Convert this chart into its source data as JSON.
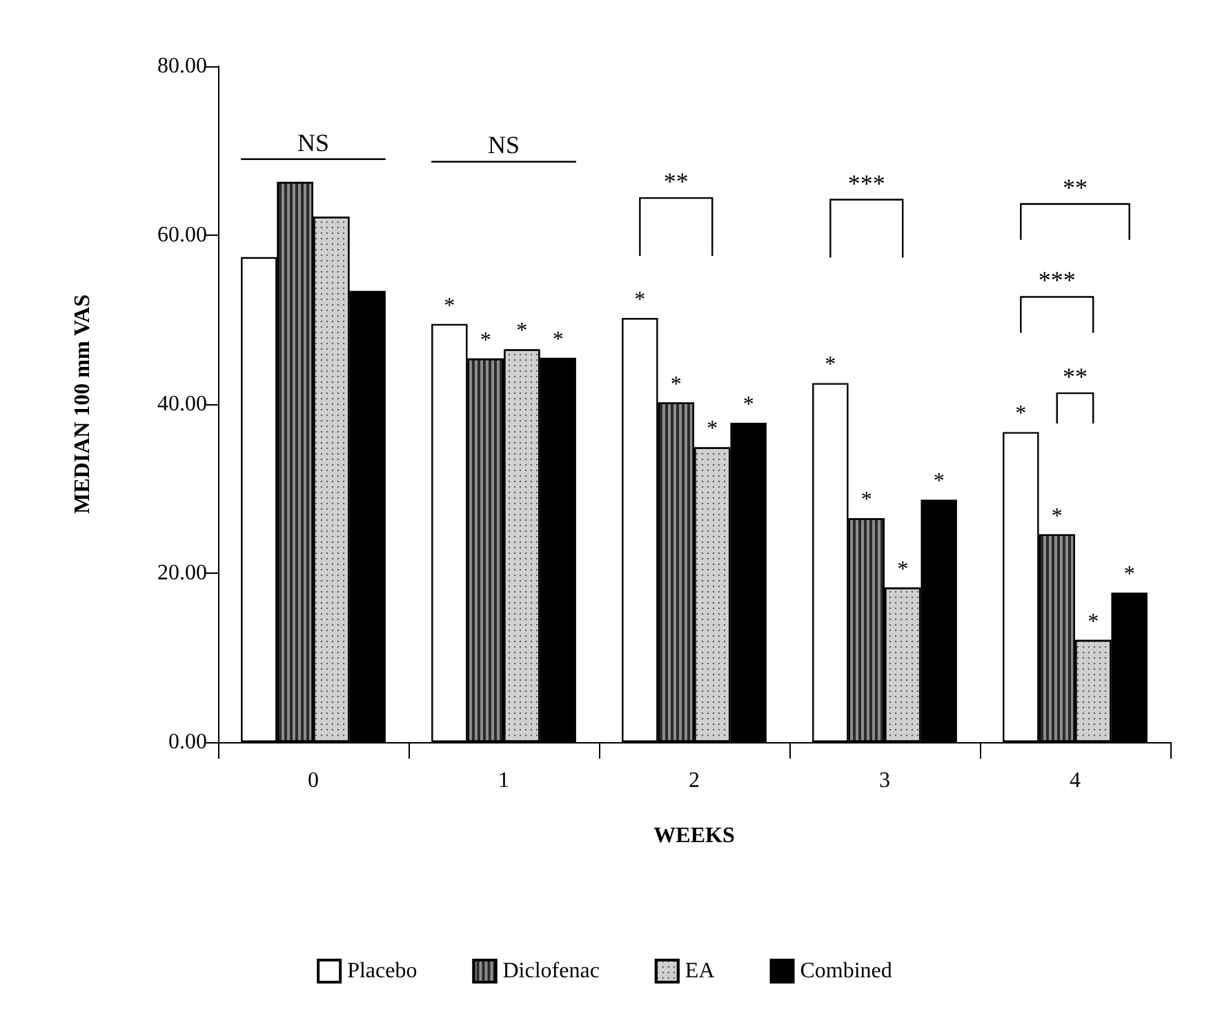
{
  "chart_data": {
    "type": "bar",
    "xlabel": "WEEKS",
    "ylabel": "MEDIAN 100 mm VAS",
    "categories": [
      "0",
      "1",
      "2",
      "3",
      "4"
    ],
    "ylim": [
      0,
      80
    ],
    "yticks": [
      {
        "value": 0,
        "label": "0.00"
      },
      {
        "value": 20,
        "label": "20.00"
      },
      {
        "value": 40,
        "label": "40.00"
      },
      {
        "value": 60,
        "label": "60.00"
      },
      {
        "value": 80,
        "label": "80.00"
      }
    ],
    "grid": false,
    "legend": "bottom",
    "series": [
      {
        "name": "Placebo",
        "color": "#ffffff",
        "values": [
          57.4,
          49.5,
          50.2,
          42.5,
          36.7
        ],
        "value_labels": [
          null,
          "*",
          "*",
          "*",
          "*"
        ]
      },
      {
        "name": "Diclofenac",
        "color": "#8c8c8c",
        "values": [
          66.3,
          45.4,
          40.2,
          26.5,
          24.6
        ],
        "value_labels": [
          null,
          "*",
          "*",
          "*",
          "*"
        ]
      },
      {
        "name": "EA",
        "color": "#d0d0d0",
        "values": [
          62.2,
          46.5,
          34.9,
          18.3,
          12.1
        ],
        "value_labels": [
          null,
          "*",
          "*",
          "*",
          "*"
        ]
      },
      {
        "name": "Combined",
        "color": "#000000",
        "values": [
          53.4,
          45.5,
          37.8,
          28.7,
          17.7
        ],
        "value_labels": [
          null,
          "*",
          "*",
          "*",
          "*"
        ]
      }
    ],
    "annotations": [
      "NS",
      "NS",
      "**",
      "***",
      "**",
      "***",
      "**"
    ]
  }
}
